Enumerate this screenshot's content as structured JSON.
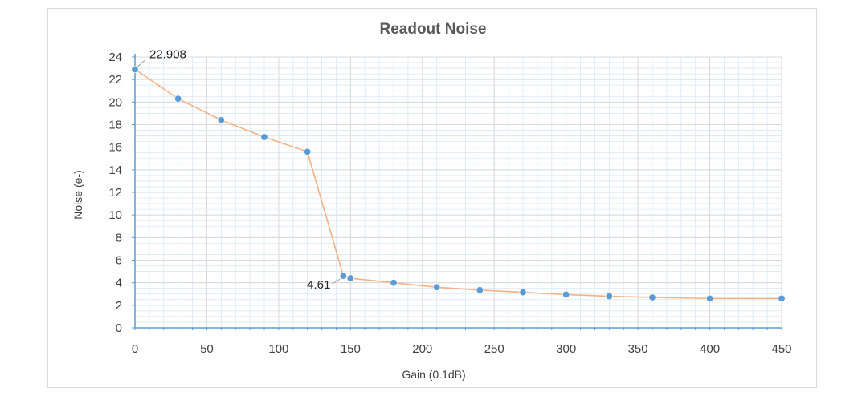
{
  "chart_data": {
    "type": "line",
    "title": "Readout Noise",
    "xlabel": "Gain (0.1dB)",
    "ylabel": "Noise (e-)",
    "xlim": [
      0,
      450
    ],
    "ylim": [
      0,
      24
    ],
    "xticks": [
      0,
      50,
      100,
      150,
      200,
      250,
      300,
      350,
      400,
      450
    ],
    "yticks": [
      0,
      2,
      4,
      6,
      8,
      10,
      12,
      14,
      16,
      18,
      20,
      22,
      24
    ],
    "grid": true,
    "series": [
      {
        "x": [
          0,
          30,
          60,
          90,
          120,
          145,
          150,
          180,
          210,
          240,
          270,
          300,
          330,
          360,
          400,
          450
        ],
        "y": [
          22.908,
          20.3,
          18.4,
          16.9,
          15.6,
          4.61,
          4.4,
          4.0,
          3.6,
          3.35,
          3.15,
          2.95,
          2.8,
          2.7,
          2.6,
          2.6
        ]
      }
    ],
    "annotations": [
      {
        "x": 0,
        "y": 22.908,
        "text": "22.908"
      },
      {
        "x": 145,
        "y": 4.61,
        "text": "4.61"
      }
    ],
    "colors": {
      "line": "#f4b183",
      "marker": "#5b9bd5",
      "grid_major": "#d9d9d9",
      "grid_minor": "#dae8f5",
      "axis": "#5b9bd5"
    }
  }
}
